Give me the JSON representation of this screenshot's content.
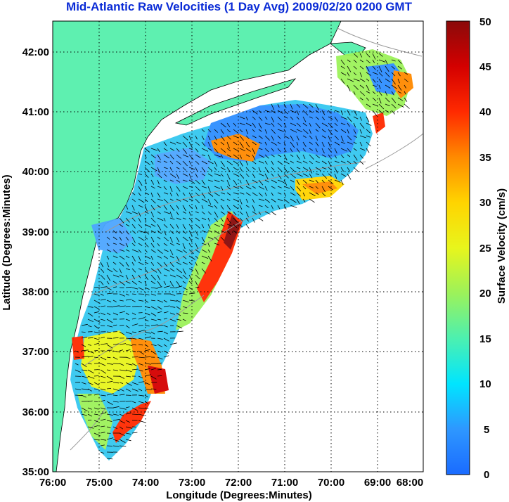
{
  "title": "Mid-Atlantic Raw Velocities (1 Day Avg) 2009/02/20 0200 GMT",
  "x_axis": {
    "label": "Longitude (Degrees:Minutes)",
    "ticks": [
      "76:00",
      "75:00",
      "74:00",
      "73:00",
      "72:00",
      "71:00",
      "70:00",
      "69:00",
      "68:00"
    ]
  },
  "y_axis": {
    "label": "Latitude (Degrees:Minutes)",
    "ticks": [
      "42:00",
      "41:00",
      "40:00",
      "39:00",
      "38:00",
      "37:00",
      "36:00",
      "35:00"
    ]
  },
  "colorbar": {
    "label": "Surface Velocity (cm/s)",
    "ticks": [
      "50",
      "45",
      "40",
      "35",
      "30",
      "25",
      "20",
      "15",
      "10",
      "5",
      "0"
    ],
    "range": [
      0,
      50
    ]
  },
  "colors": {
    "title": "#0a2bd6",
    "land": "#5ef0b0",
    "grid": "#000000",
    "vectors": "#000000",
    "bathymetry": "#9a9a9a"
  },
  "map_extent": {
    "lon": [
      -76,
      -68
    ],
    "lat": [
      35,
      42.5
    ]
  },
  "grid": "dotted"
}
